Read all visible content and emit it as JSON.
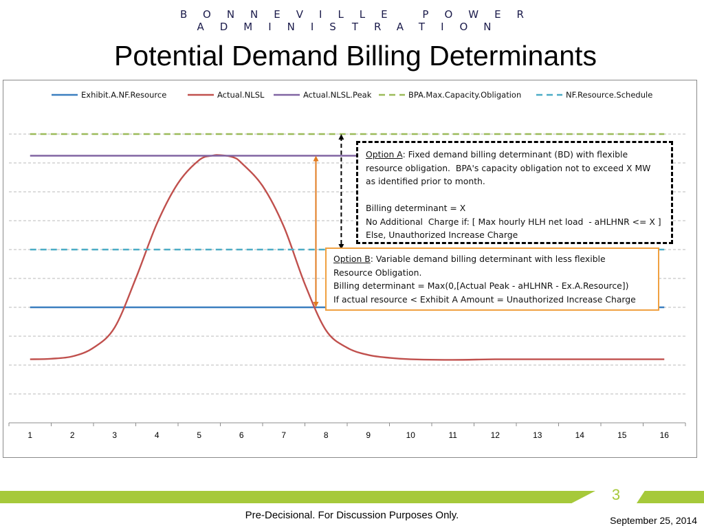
{
  "header": {
    "organization": "BONNEVILLE POWER ADMINISTRATION"
  },
  "slide": {
    "title": "Potential Demand Billing Determinants"
  },
  "chart_data": {
    "type": "line",
    "title": "",
    "xlabel": "",
    "ylabel": "",
    "categories": [
      "1",
      "2",
      "3",
      "4",
      "5",
      "6",
      "7",
      "8",
      "9",
      "10",
      "11",
      "12",
      "13",
      "14",
      "15",
      "16"
    ],
    "ylim": [
      0,
      10
    ],
    "grid": true,
    "legend_position": "top",
    "series": [
      {
        "name": "Exhibit.A.NF.Resource",
        "color": "#3a7ebf",
        "dash": "solid",
        "values": [
          4,
          4,
          4,
          4,
          4,
          4,
          4,
          4,
          4,
          4,
          4,
          4,
          4,
          4,
          4,
          4
        ]
      },
      {
        "name": "Actual.NLSL",
        "color": "#c0504d",
        "dash": "solid",
        "x": [
          1,
          1.5,
          2,
          2.5,
          3,
          3.5,
          4,
          4.5,
          5,
          5.3,
          5.5,
          5.8,
          6,
          6.5,
          7,
          7.5,
          8,
          8.5,
          9,
          9.5,
          10,
          11,
          12,
          13,
          14,
          15,
          16
        ],
        "values": [
          2.2,
          2.22,
          2.3,
          2.6,
          3.3,
          5.0,
          6.9,
          8.3,
          9.1,
          9.25,
          9.27,
          9.2,
          9.0,
          8.2,
          6.8,
          4.8,
          3.2,
          2.6,
          2.35,
          2.25,
          2.2,
          2.18,
          2.2,
          2.2,
          2.2,
          2.2,
          2.2
        ]
      },
      {
        "name": "Actual.NLSL.Peak",
        "color": "#8064a2",
        "dash": "solid",
        "values": [
          9.25,
          9.25,
          9.25,
          9.25,
          9.25,
          9.25,
          9.25,
          9.25,
          9.25,
          9.25,
          9.25,
          9.25,
          9.25,
          9.25,
          9.25,
          9.25
        ]
      },
      {
        "name": "BPA.Max.Capacity.Obligation",
        "color": "#9bbb59",
        "dash": "dashed",
        "values": [
          10,
          10,
          10,
          10,
          10,
          10,
          10,
          10,
          10,
          10,
          10,
          10,
          10,
          10,
          10,
          10
        ]
      },
      {
        "name": "NF.Resource.Schedule",
        "color": "#4bacc6",
        "dash": "dashed",
        "values": [
          6,
          6,
          6,
          6,
          6,
          6,
          6,
          6,
          6,
          6,
          6,
          6,
          6,
          6,
          6,
          6
        ]
      }
    ],
    "annotations": {
      "option_a": {
        "label": "Option A",
        "lines": [
          ": Fixed demand billing determinant (BD) with flexible",
          "resource obligation.  BPA's capacity obligation not to exceed X MW",
          "as identified prior to month.",
          "",
          "Billing determinant = X",
          "No Additional  Charge if: [ Max hourly HLH net load  - aHLHNR <= X ]",
          "Else, Unauthorized Increase Charge"
        ]
      },
      "option_b": {
        "label": "Option B",
        "lines": [
          ": Variable demand billing determinant with less flexible",
          "Resource Obligation.",
          "Billing determinant = Max(0,[Actual Peak - aHLHNR - Ex.A.Resource])",
          "If actual resource < Exhibit A Amount = Unauthorized Increase Charge"
        ]
      },
      "arrow_a_color": "#000000",
      "arrow_b_color": "#e07b20"
    }
  },
  "footer": {
    "page_number": "3",
    "note": "Pre-Decisional.  For Discussion Purposes Only.",
    "date": "September 25, 2014",
    "accent_color": "#a6c93a"
  }
}
